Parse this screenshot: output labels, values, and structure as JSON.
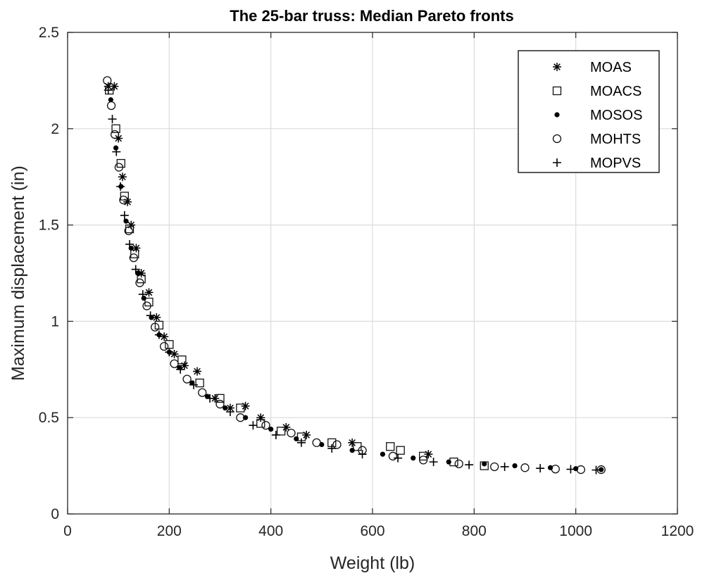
{
  "chart_data": {
    "type": "scatter",
    "title": "The 25-bar truss: Median Pareto fronts",
    "xlabel": "Weight (lb)",
    "ylabel": "Maximum displacement (in)",
    "xlim": [
      0,
      1200
    ],
    "ylim": [
      0,
      2.5
    ],
    "xticks": [
      0,
      200,
      400,
      600,
      800,
      1000,
      1200
    ],
    "yticks": [
      0,
      0.5,
      1,
      1.5,
      2,
      2.5
    ],
    "xtick_labels": [
      "0",
      "200",
      "400",
      "600",
      "800",
      "1000",
      "1200"
    ],
    "ytick_labels": [
      "0",
      "0.5",
      "1",
      "1.5",
      "2",
      "2.5"
    ],
    "grid": true,
    "legend_position": "top-right",
    "series": [
      {
        "name": "MOAS",
        "marker": "asterisk",
        "x": [
          80,
          92,
          100,
          108,
          118,
          125,
          135,
          145,
          160,
          175,
          190,
          210,
          230,
          255,
          290,
          320,
          350,
          380,
          430,
          470,
          560,
          710
        ],
        "y": [
          2.22,
          2.22,
          1.95,
          1.75,
          1.62,
          1.5,
          1.38,
          1.25,
          1.15,
          1.02,
          0.92,
          0.83,
          0.77,
          0.74,
          0.6,
          0.55,
          0.56,
          0.5,
          0.45,
          0.41,
          0.37,
          0.31
        ]
      },
      {
        "name": "MOACS",
        "marker": "square",
        "x": [
          82,
          95,
          105,
          112,
          122,
          132,
          145,
          160,
          180,
          200,
          225,
          260,
          300,
          340,
          380,
          420,
          460,
          520,
          570,
          635,
          655,
          700,
          760,
          820
        ],
        "y": [
          2.2,
          2.0,
          1.82,
          1.65,
          1.48,
          1.35,
          1.22,
          1.1,
          0.98,
          0.88,
          0.8,
          0.68,
          0.6,
          0.55,
          0.47,
          0.43,
          0.4,
          0.37,
          0.35,
          0.35,
          0.33,
          0.3,
          0.27,
          0.25
        ]
      },
      {
        "name": "MOSOS",
        "marker": "dot",
        "x": [
          85,
          95,
          105,
          115,
          125,
          138,
          150,
          165,
          180,
          200,
          220,
          245,
          275,
          310,
          350,
          400,
          450,
          500,
          560,
          620,
          680,
          750,
          820,
          880,
          950,
          1000,
          1050
        ],
        "y": [
          2.15,
          1.9,
          1.7,
          1.52,
          1.38,
          1.25,
          1.12,
          1.02,
          0.93,
          0.84,
          0.76,
          0.68,
          0.61,
          0.55,
          0.5,
          0.44,
          0.39,
          0.36,
          0.33,
          0.31,
          0.29,
          0.27,
          0.26,
          0.25,
          0.24,
          0.235,
          0.23
        ]
      },
      {
        "name": "MOHTS",
        "marker": "circle",
        "x": [
          78,
          86,
          93,
          101,
          110,
          120,
          130,
          142,
          156,
          172,
          190,
          210,
          235,
          265,
          300,
          340,
          390,
          440,
          490,
          530,
          580,
          640,
          700,
          770,
          840,
          900,
          960,
          1010,
          1050
        ],
        "y": [
          2.25,
          2.12,
          1.97,
          1.8,
          1.63,
          1.47,
          1.33,
          1.2,
          1.08,
          0.97,
          0.87,
          0.78,
          0.7,
          0.63,
          0.57,
          0.5,
          0.46,
          0.42,
          0.37,
          0.36,
          0.33,
          0.3,
          0.28,
          0.26,
          0.245,
          0.24,
          0.233,
          0.23,
          0.23
        ]
      },
      {
        "name": "MOPVS",
        "marker": "plus",
        "x": [
          80,
          88,
          96,
          104,
          112,
          122,
          134,
          148,
          163,
          180,
          200,
          222,
          248,
          280,
          320,
          365,
          410,
          460,
          520,
          580,
          650,
          720,
          790,
          860,
          930,
          990,
          1040
        ],
        "y": [
          2.2,
          2.05,
          1.88,
          1.7,
          1.55,
          1.4,
          1.27,
          1.14,
          1.03,
          0.93,
          0.84,
          0.75,
          0.67,
          0.6,
          0.53,
          0.46,
          0.41,
          0.37,
          0.34,
          0.31,
          0.29,
          0.27,
          0.255,
          0.245,
          0.237,
          0.232,
          0.228
        ]
      }
    ]
  }
}
